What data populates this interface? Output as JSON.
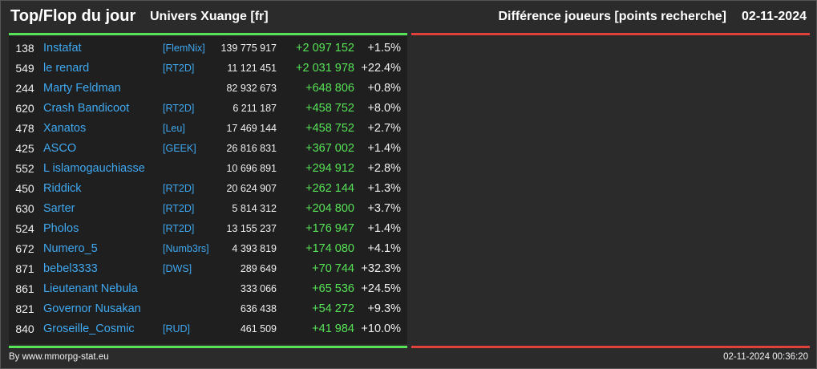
{
  "header": {
    "title": "Top/Flop du jour",
    "universe": "Univers Xuange [fr]",
    "metric": "Différence joueurs [points recherche]",
    "date": "02-11-2024"
  },
  "colors": {
    "positive": "#57e357",
    "negative": "#e0413b",
    "link": "#3fa8f0",
    "background": "#2b2b2b"
  },
  "top": [
    {
      "rank": "138",
      "name": "Instafat",
      "alliance": "[FlemNix]",
      "points": "139 775 917",
      "diff": "+2 097 152",
      "pct": "+1.5%"
    },
    {
      "rank": "549",
      "name": "le renard",
      "alliance": "[RT2D]",
      "points": "11 121 451",
      "diff": "+2 031 978",
      "pct": "+22.4%"
    },
    {
      "rank": "244",
      "name": "Marty Feldman",
      "alliance": "",
      "points": "82 932 673",
      "diff": "+648 806",
      "pct": "+0.8%"
    },
    {
      "rank": "620",
      "name": "Crash Bandicoot",
      "alliance": "[RT2D]",
      "points": "6 211 187",
      "diff": "+458 752",
      "pct": "+8.0%"
    },
    {
      "rank": "478",
      "name": "Xanatos",
      "alliance": "[Leu]",
      "points": "17 469 144",
      "diff": "+458 752",
      "pct": "+2.7%"
    },
    {
      "rank": "425",
      "name": "ASCO",
      "alliance": "[GEEK]",
      "points": "26 816 831",
      "diff": "+367 002",
      "pct": "+1.4%"
    },
    {
      "rank": "552",
      "name": "L islamogauchiasse",
      "alliance": "",
      "points": "10 696 891",
      "diff": "+294 912",
      "pct": "+2.8%"
    },
    {
      "rank": "450",
      "name": "Riddick",
      "alliance": "[RT2D]",
      "points": "20 624 907",
      "diff": "+262 144",
      "pct": "+1.3%"
    },
    {
      "rank": "630",
      "name": "Sarter",
      "alliance": "[RT2D]",
      "points": "5 814 312",
      "diff": "+204 800",
      "pct": "+3.7%"
    },
    {
      "rank": "524",
      "name": "Pholos",
      "alliance": "[RT2D]",
      "points": "13 155 237",
      "diff": "+176 947",
      "pct": "+1.4%"
    },
    {
      "rank": "672",
      "name": "Numero_5",
      "alliance": "[Numb3rs]",
      "points": "4 393 819",
      "diff": "+174 080",
      "pct": "+4.1%"
    },
    {
      "rank": "871",
      "name": "bebel3333",
      "alliance": "[DWS]",
      "points": "289 649",
      "diff": "+70 744",
      "pct": "+32.3%"
    },
    {
      "rank": "861",
      "name": "Lieutenant Nebula",
      "alliance": "",
      "points": "333 066",
      "diff": "+65 536",
      "pct": "+24.5%"
    },
    {
      "rank": "821",
      "name": "Governor Nusakan",
      "alliance": "",
      "points": "636 438",
      "diff": "+54 272",
      "pct": "+9.3%"
    },
    {
      "rank": "840",
      "name": "Groseille_Cosmic",
      "alliance": "[RUD]",
      "points": "461 509",
      "diff": "+41 984",
      "pct": "+10.0%"
    }
  ],
  "footer": {
    "credit": "By www.mmorpg-stat.eu",
    "timestamp": "02-11-2024 00:36:20"
  }
}
